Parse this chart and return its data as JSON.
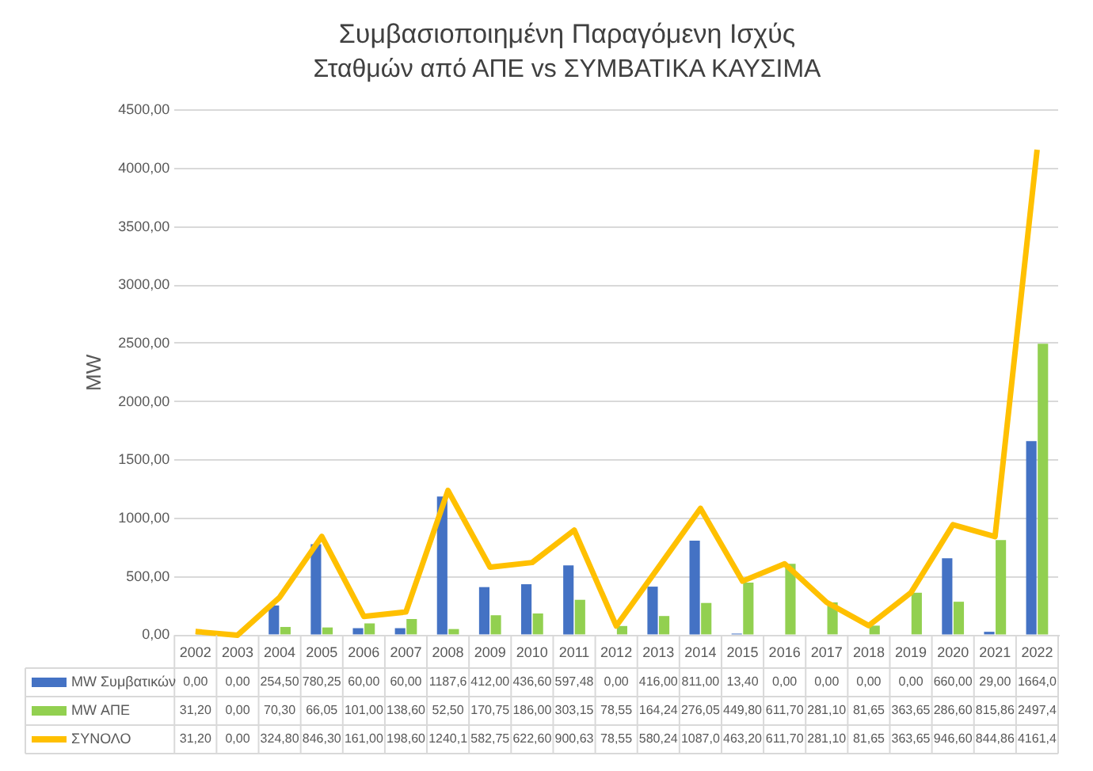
{
  "chart_data": {
    "type": "bar",
    "title": "Συμβασιοποιημένη Παραγόμενη Ισχύς",
    "subtitle": "Σταθμών από ΑΠΕ vs ΣΥΜΒΑΤΙΚΑ ΚΑΥΣΙΜΑ",
    "ylabel": "MW",
    "categories": [
      "2002",
      "2003",
      "2004",
      "2005",
      "2006",
      "2007",
      "2008",
      "2009",
      "2010",
      "2011",
      "2012",
      "2013",
      "2014",
      "2015",
      "2016",
      "2017",
      "2018",
      "2019",
      "2020",
      "2021",
      "2022"
    ],
    "series": [
      {
        "name": "MW Συμβατικών",
        "color": "#4472c4",
        "values": [
          0,
          0,
          254.5,
          780.25,
          60,
          60,
          1187.6,
          412,
          436.6,
          597.48,
          0,
          416,
          811,
          13.4,
          0,
          0,
          0,
          0,
          660,
          29,
          1664.0
        ],
        "value_labels": [
          "0,00",
          "0,00",
          "254,50",
          "780,25",
          "60,00",
          "60,00",
          "1187,6",
          "412,00",
          "436,60",
          "597,48",
          "0,00",
          "416,00",
          "811,00",
          "13,40",
          "0,00",
          "0,00",
          "0,00",
          "0,00",
          "660,00",
          "29,00",
          "1664,0"
        ]
      },
      {
        "name": "MW ΑΠΕ",
        "color": "#92d050",
        "values": [
          31.2,
          0,
          70.3,
          66.05,
          101,
          138.6,
          52.5,
          170.75,
          186,
          303.15,
          78.55,
          164.24,
          276.05,
          449.8,
          611.7,
          281.1,
          81.65,
          363.65,
          286.6,
          815.86,
          2497.4
        ],
        "value_labels": [
          "31,20",
          "0,00",
          "70,30",
          "66,05",
          "101,00",
          "138,60",
          "52,50",
          "170,75",
          "186,00",
          "303,15",
          "78,55",
          "164,24",
          "276,05",
          "449,80",
          "611,70",
          "281,10",
          "81,65",
          "363,65",
          "286,60",
          "815,86",
          "2497,4"
        ]
      },
      {
        "name": "ΣΥΝΟΛΟ",
        "type": "line",
        "color": "#ffc000",
        "values": [
          31.2,
          0,
          324.8,
          846.3,
          161,
          198.6,
          1240.1,
          582.75,
          622.6,
          900.63,
          78.55,
          580.24,
          1087.0,
          463.2,
          611.7,
          281.1,
          81.65,
          363.65,
          946.6,
          844.86,
          4161.4
        ],
        "value_labels": [
          "31,20",
          "0,00",
          "324,80",
          "846,30",
          "161,00",
          "198,60",
          "1240,1",
          "582,75",
          "622,60",
          "900,63",
          "78,55",
          "580,24",
          "1087,0",
          "463,20",
          "611,70",
          "281,10",
          "81,65",
          "363,65",
          "946,60",
          "844,86",
          "4161,4"
        ]
      }
    ],
    "ylim": [
      0,
      4500
    ],
    "yticks": [
      {
        "value": 0,
        "label": "0,00"
      },
      {
        "value": 500,
        "label": "500,00"
      },
      {
        "value": 1000,
        "label": "1000,00"
      },
      {
        "value": 1500,
        "label": "1500,00"
      },
      {
        "value": 2000,
        "label": "2000,00"
      },
      {
        "value": 2500,
        "label": "2500,00"
      },
      {
        "value": 3000,
        "label": "3000,00"
      },
      {
        "value": 3500,
        "label": "3500,00"
      },
      {
        "value": 4000,
        "label": "4000,00"
      },
      {
        "value": 4500,
        "label": "4500,00"
      }
    ],
    "grid": "y",
    "legend": "bottom",
    "marker": "none",
    "line_style": "solid"
  }
}
